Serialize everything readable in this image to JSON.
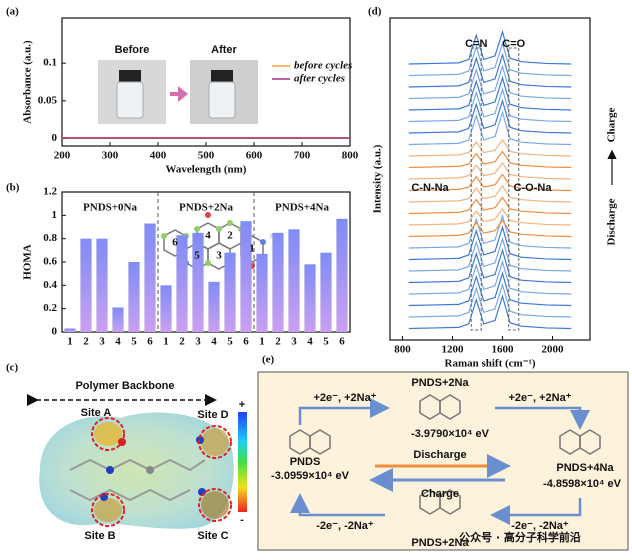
{
  "panel_labels": [
    "(a)",
    "(b)",
    "(c)",
    "(d)",
    "(e)"
  ],
  "chart_data": [
    {
      "type": "line",
      "x_label": "Wavelength (nm)",
      "y_label": "Absorbance (a.u.)",
      "x": [
        200,
        300,
        400,
        500,
        600,
        700,
        800
      ],
      "series": [
        {
          "name": "before cycles",
          "color": "#f0a040",
          "values": [
            0.001,
            0.001,
            0.001,
            0.001,
            0.001,
            0.001,
            0.001
          ]
        },
        {
          "name": "after cycles",
          "color": "#a0308a",
          "values": [
            0.0005,
            0.0005,
            0.0005,
            0.0005,
            0.0005,
            0.0005,
            0.0005
          ]
        }
      ],
      "xlim": [
        200,
        800
      ],
      "ylim": [
        -0.01,
        0.16
      ],
      "xticks": [
        200,
        300,
        400,
        500,
        600,
        700,
        800
      ],
      "yticks": [
        0,
        0.05,
        0.1
      ],
      "annotations": [
        "Before",
        "After"
      ]
    },
    {
      "type": "bar",
      "y_label": "HOMA",
      "categories": [
        "1",
        "2",
        "3",
        "4",
        "5",
        "6",
        "1",
        "2",
        "3",
        "4",
        "5",
        "6",
        "1",
        "2",
        "3",
        "4",
        "5",
        "6"
      ],
      "values": [
        0.03,
        0.8,
        0.8,
        0.21,
        0.6,
        0.93,
        0.4,
        0.83,
        0.85,
        0.43,
        0.68,
        0.95,
        0.67,
        0.85,
        0.88,
        0.58,
        0.68,
        0.97
      ],
      "ylim": [
        0,
        1.2
      ],
      "yticks": [
        0,
        0.2,
        0.4,
        0.6,
        0.8,
        1,
        1.2
      ],
      "group_labels": [
        "PNDS+0Na",
        "PNDS+2Na",
        "PNDS+4Na"
      ],
      "group_label_colors": [
        "#e02020",
        "#111111",
        "#e02020"
      ],
      "ring_labels": [
        "6",
        "5",
        "4",
        "2",
        "3",
        "1"
      ]
    },
    {
      "type": "line",
      "x_label": "Raman shift (cm⁻¹)",
      "y_label": "Intensity (a.u.)",
      "x": [
        850,
        1050,
        1250,
        1330,
        1390,
        1450,
        1540,
        1600,
        1660,
        1750,
        1950,
        2150
      ],
      "series": [
        {
          "color": "#3b78d8",
          "values": [
            0,
            0.05,
            0.1,
            0.4,
            2.5,
            0.4,
            0.7,
            2.8,
            0.5,
            0.2,
            0.05,
            0
          ]
        },
        {
          "color": "#7aa6e6",
          "values": [
            1,
            1.05,
            1.1,
            1.4,
            3.5,
            1.4,
            1.7,
            3.8,
            1.5,
            1.2,
            1.05,
            1
          ]
        },
        {
          "color": "#3b78d8",
          "values": [
            2,
            2.05,
            2.1,
            2.4,
            4.5,
            2.4,
            2.7,
            4.8,
            2.5,
            2.2,
            2.05,
            2
          ]
        },
        {
          "color": "#7aa6e6",
          "values": [
            3,
            3.05,
            3.1,
            3.4,
            5.5,
            3.4,
            3.7,
            5.8,
            3.5,
            3.2,
            3.05,
            3
          ]
        },
        {
          "color": "#3b78d8",
          "values": [
            4,
            4.05,
            4.1,
            4.4,
            6.5,
            4.4,
            4.7,
            6.8,
            4.5,
            4.2,
            4.05,
            4
          ]
        },
        {
          "color": "#7aa6e6",
          "values": [
            5,
            5.05,
            5.1,
            5.4,
            7.5,
            5.4,
            5.7,
            7.8,
            5.5,
            5.2,
            5.05,
            5
          ]
        },
        {
          "color": "#3b78d8",
          "values": [
            6,
            6.05,
            6.1,
            6.4,
            8.5,
            6.4,
            6.7,
            8.8,
            6.5,
            6.2,
            6.05,
            6
          ]
        },
        {
          "color": "#7aa6e6",
          "values": [
            7,
            7.05,
            7.1,
            7.4,
            9.5,
            7.4,
            7.7,
            9.8,
            7.5,
            7.2,
            7.05,
            7
          ]
        },
        {
          "color": "#f08c3c",
          "values": [
            8,
            8.05,
            8.1,
            8.3,
            9.2,
            8.3,
            8.5,
            9.4,
            8.4,
            8.2,
            8.05,
            8
          ]
        },
        {
          "color": "#f5b27a",
          "values": [
            9,
            9.05,
            9.1,
            9.3,
            10.2,
            9.3,
            9.5,
            10.4,
            9.4,
            9.2,
            9.05,
            9
          ]
        },
        {
          "color": "#f08c3c",
          "values": [
            10,
            10.05,
            10.1,
            10.3,
            11.2,
            10.3,
            10.5,
            11.4,
            10.4,
            10.2,
            10.05,
            10
          ]
        },
        {
          "color": "#f5b27a",
          "values": [
            11,
            11.05,
            11.1,
            11.3,
            12.2,
            11.3,
            11.5,
            12.4,
            11.4,
            11.2,
            11.05,
            11
          ]
        },
        {
          "color": "#f08c3c",
          "values": [
            12,
            12.05,
            12.1,
            12.3,
            13.2,
            12.3,
            12.5,
            13.4,
            12.4,
            12.2,
            12.05,
            12
          ]
        },
        {
          "color": "#f5b27a",
          "values": [
            13,
            13.05,
            13.1,
            13.3,
            14.2,
            13.3,
            13.5,
            14.4,
            13.4,
            13.2,
            13.05,
            13
          ]
        },
        {
          "color": "#f08c3c",
          "values": [
            14,
            14.05,
            14.1,
            14.3,
            15.2,
            14.3,
            14.5,
            15.4,
            14.4,
            14.2,
            14.05,
            14
          ]
        },
        {
          "color": "#f5b27a",
          "values": [
            15,
            15.05,
            15.1,
            15.3,
            16.2,
            15.3,
            15.5,
            16.4,
            15.4,
            15.2,
            15.05,
            15
          ]
        },
        {
          "color": "#7aa6e6",
          "values": [
            16,
            16.05,
            16.1,
            16.4,
            18.5,
            16.4,
            16.7,
            18.8,
            16.5,
            16.2,
            16.05,
            16
          ]
        },
        {
          "color": "#3b78d8",
          "values": [
            17,
            17.05,
            17.1,
            17.4,
            19.5,
            17.4,
            17.7,
            19.8,
            17.5,
            17.2,
            17.05,
            17
          ]
        },
        {
          "color": "#7aa6e6",
          "values": [
            18,
            18.05,
            18.1,
            18.4,
            20.5,
            18.4,
            18.7,
            20.8,
            18.5,
            18.2,
            18.05,
            18
          ]
        },
        {
          "color": "#3b78d8",
          "values": [
            19,
            19.05,
            19.1,
            19.4,
            21.5,
            19.4,
            19.7,
            21.8,
            19.5,
            19.2,
            19.05,
            19
          ]
        },
        {
          "color": "#7aa6e6",
          "values": [
            20,
            20.05,
            20.1,
            20.4,
            22.5,
            20.4,
            20.7,
            22.8,
            20.5,
            20.2,
            20.05,
            20
          ]
        },
        {
          "color": "#3b78d8",
          "values": [
            21,
            21.05,
            21.1,
            21.4,
            23.5,
            21.4,
            21.7,
            23.8,
            21.5,
            21.2,
            21.05,
            21
          ]
        },
        {
          "color": "#7aa6e6",
          "values": [
            22,
            22.05,
            22.1,
            22.4,
            24.5,
            22.4,
            22.7,
            24.8,
            22.5,
            22.2,
            22.05,
            22
          ]
        },
        {
          "color": "#3b78d8",
          "values": [
            23,
            23.05,
            23.1,
            23.4,
            25.5,
            23.4,
            23.7,
            25.8,
            23.5,
            23.2,
            23.05,
            23
          ]
        }
      ],
      "xlim": [
        700,
        2300
      ],
      "ylim": [
        -1,
        27
      ],
      "xticks": [
        800,
        1200,
        1600,
        2000
      ],
      "annotations": [
        "C=N",
        "C=O",
        "C-N-Na",
        "C-O-Na"
      ],
      "side_label_bottom": "Discharge",
      "side_label_top": "Charge"
    }
  ],
  "esp_map": {
    "title": "Polymer Backbone",
    "sites": [
      "Site A",
      "Site B",
      "Site C",
      "Site D"
    ],
    "scale_max_label": "+",
    "scale_min_label": "-"
  },
  "scheme": {
    "top_left_step": "+2e⁻, +2Na⁺",
    "top_right_step": "+2e⁻, +2Na⁺",
    "bottom_left_step": "-2e⁻, -2Na⁺",
    "bottom_right_step": "-2e⁻, -2Na⁺",
    "state_top": "PNDS+2Na",
    "energy_top": "-3.9790×10⁴ eV",
    "state_left": "PNDS",
    "energy_left": "-3.0959×10⁴ eV",
    "state_right": "PNDS+4Na",
    "energy_right": "-4.8598×10⁴ eV",
    "state_bottom": "PNDS+2Na",
    "discharge": "Discharge",
    "charge": "Charge",
    "watermark": "公众号 · 高分子科学前沿"
  }
}
